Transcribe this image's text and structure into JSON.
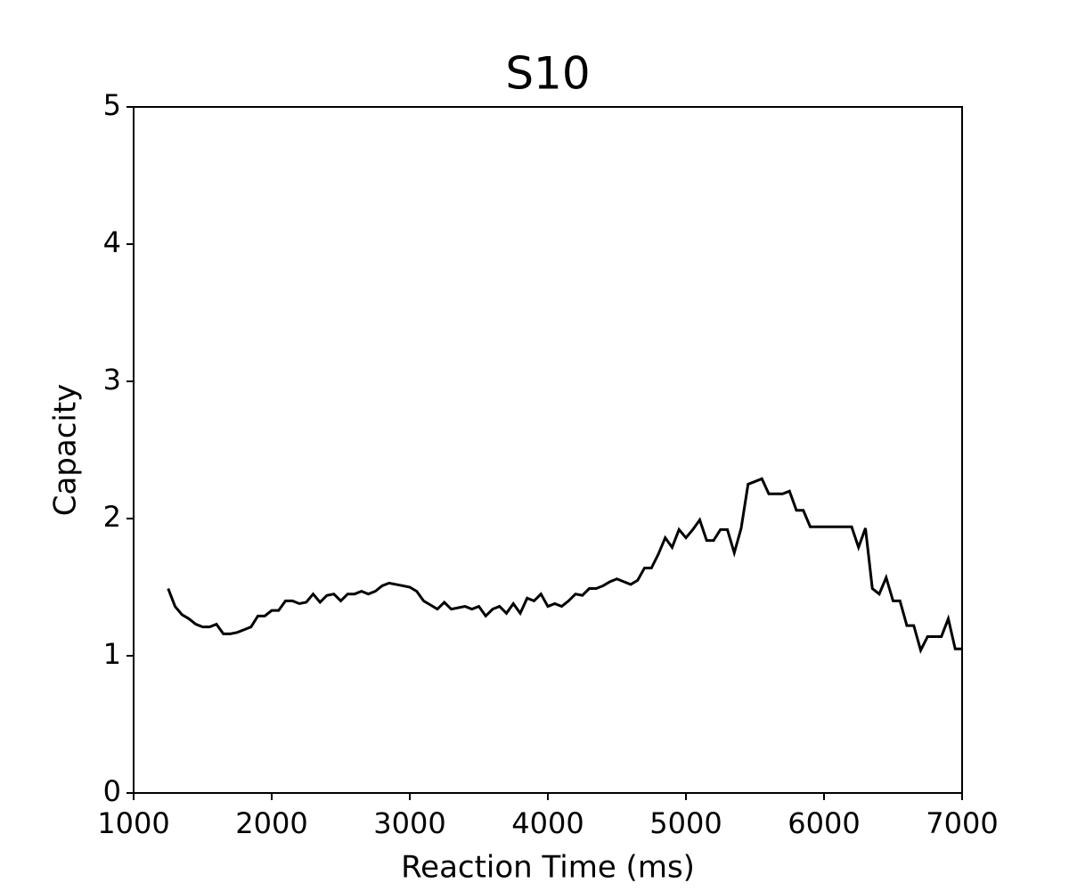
{
  "chart_data": {
    "type": "line",
    "title": "S10",
    "xlabel": "Reaction Time (ms)",
    "ylabel": "Capacity",
    "xlim": [
      1000,
      7000
    ],
    "ylim": [
      0,
      5
    ],
    "xticks": [
      1000,
      2000,
      3000,
      4000,
      5000,
      6000,
      7000
    ],
    "yticks": [
      0,
      1,
      2,
      3,
      4,
      5
    ],
    "x": [
      1250,
      1300,
      1350,
      1400,
      1450,
      1500,
      1550,
      1600,
      1650,
      1700,
      1750,
      1800,
      1850,
      1900,
      1950,
      2000,
      2050,
      2100,
      2150,
      2200,
      2250,
      2300,
      2350,
      2400,
      2450,
      2500,
      2550,
      2600,
      2650,
      2700,
      2750,
      2800,
      2850,
      2900,
      2950,
      3000,
      3050,
      3100,
      3150,
      3200,
      3250,
      3300,
      3350,
      3400,
      3450,
      3500,
      3550,
      3600,
      3650,
      3700,
      3750,
      3800,
      3850,
      3900,
      3950,
      4000,
      4050,
      4100,
      4150,
      4200,
      4250,
      4300,
      4350,
      4400,
      4450,
      4500,
      4550,
      4600,
      4650,
      4700,
      4750,
      4800,
      4850,
      4900,
      4950,
      5000,
      5050,
      5100,
      5150,
      5200,
      5250,
      5300,
      5350,
      5400,
      5450,
      5500,
      5550,
      5600,
      5650,
      5700,
      5750,
      5800,
      5850,
      5900,
      5950,
      6000,
      6050,
      6100,
      6150,
      6200,
      6250,
      6300,
      6350,
      6400,
      6450,
      6500,
      6550,
      6600,
      6650,
      6700,
      6750,
      6800,
      6850,
      6900,
      6950,
      7000
    ],
    "series": [
      {
        "color": "#000000",
        "values": [
          1.49,
          1.36,
          1.3,
          1.27,
          1.23,
          1.21,
          1.21,
          1.23,
          1.16,
          1.16,
          1.17,
          1.19,
          1.21,
          1.29,
          1.29,
          1.33,
          1.33,
          1.4,
          1.4,
          1.38,
          1.39,
          1.45,
          1.39,
          1.44,
          1.45,
          1.4,
          1.45,
          1.45,
          1.47,
          1.45,
          1.47,
          1.51,
          1.53,
          1.52,
          1.51,
          1.5,
          1.47,
          1.4,
          1.37,
          1.34,
          1.39,
          1.34,
          1.35,
          1.36,
          1.34,
          1.36,
          1.29,
          1.34,
          1.36,
          1.31,
          1.38,
          1.31,
          1.42,
          1.4,
          1.45,
          1.36,
          1.38,
          1.36,
          1.4,
          1.45,
          1.44,
          1.49,
          1.49,
          1.51,
          1.54,
          1.56,
          1.54,
          1.52,
          1.55,
          1.64,
          1.64,
          1.74,
          1.86,
          1.79,
          1.92,
          1.86,
          1.92,
          1.99,
          1.84,
          1.84,
          1.92,
          1.92,
          1.75,
          1.93,
          2.25,
          2.27,
          2.29,
          2.18,
          2.18,
          2.18,
          2.2,
          2.06,
          2.06,
          1.94,
          1.94,
          1.94,
          1.94,
          1.94,
          1.94,
          1.94,
          1.79,
          1.93,
          1.49,
          1.45,
          1.57,
          1.4,
          1.4,
          1.22,
          1.22,
          1.04,
          1.14,
          1.14,
          1.14,
          1.27,
          1.05,
          1.05
        ]
      }
    ]
  }
}
